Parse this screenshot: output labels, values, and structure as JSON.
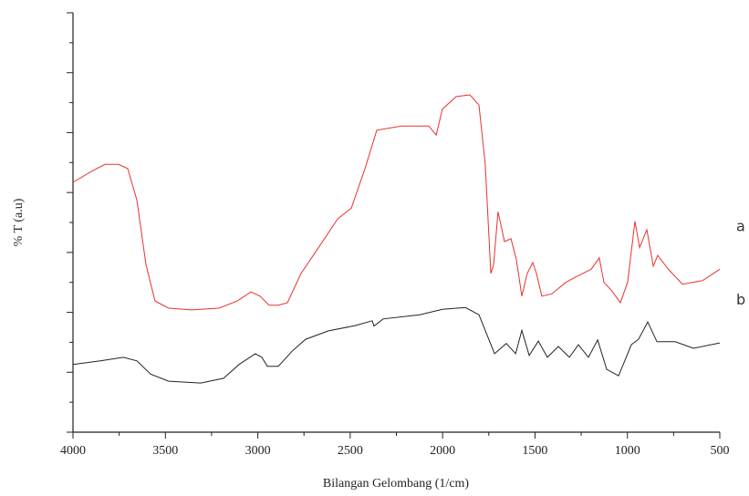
{
  "chart_data": {
    "type": "line",
    "xlabel": "Bilangan Gelombang (1/cm)",
    "ylabel": "% T (a.u)",
    "xlim": [
      4000,
      500
    ],
    "xticks": [
      4000,
      3500,
      3000,
      2500,
      2000,
      1500,
      1000,
      500
    ],
    "xminorticks": [
      3750,
      3250,
      2750,
      2250,
      1750,
      1250,
      750
    ],
    "ylim": [
      0,
      7
    ],
    "yticks": [
      0,
      1,
      2,
      3,
      4,
      5,
      6,
      7
    ],
    "yminorticks": [
      0.5,
      1.5,
      2.5,
      3.5,
      4.5,
      5.5,
      6.5
    ],
    "series": [
      {
        "name": "a",
        "color": "#e8322e",
        "x": [
          4000,
          3901,
          3827,
          3753,
          3704,
          3654,
          3605,
          3556,
          3482,
          3358,
          3210,
          3111,
          3037,
          2988,
          2939,
          2889,
          2840,
          2766,
          2667,
          2568,
          2494,
          2420,
          2356,
          2223,
          2075,
          2035,
          2001,
          1927,
          1852,
          1803,
          1769,
          1739,
          1724,
          1700,
          1665,
          1630,
          1601,
          1571,
          1542,
          1512,
          1492,
          1463,
          1408,
          1334,
          1260,
          1196,
          1152,
          1127,
          1087,
          1038,
          999,
          959,
          934,
          895,
          860,
          836,
          776,
          702,
          593,
          500
        ],
        "values": [
          4.17,
          4.35,
          4.47,
          4.47,
          4.4,
          3.87,
          2.8,
          2.19,
          2.07,
          2.04,
          2.07,
          2.19,
          2.34,
          2.27,
          2.12,
          2.12,
          2.16,
          2.65,
          3.1,
          3.56,
          3.74,
          4.4,
          5.04,
          5.11,
          5.11,
          4.96,
          5.39,
          5.6,
          5.63,
          5.46,
          4.47,
          2.65,
          2.8,
          3.68,
          3.18,
          3.23,
          2.88,
          2.27,
          2.65,
          2.83,
          2.65,
          2.27,
          2.31,
          2.5,
          2.62,
          2.72,
          2.91,
          2.5,
          2.37,
          2.16,
          2.5,
          3.52,
          3.08,
          3.38,
          2.77,
          2.95,
          2.71,
          2.47,
          2.53,
          2.72
        ]
      },
      {
        "name": "b",
        "color": "#222222",
        "x": [
          4000,
          3852,
          3728,
          3654,
          3580,
          3482,
          3309,
          3185,
          3101,
          3013,
          2978,
          2948,
          2889,
          2815,
          2741,
          2618,
          2470,
          2381,
          2371,
          2322,
          2124,
          2001,
          1877,
          1803,
          1754,
          1719,
          1655,
          1605,
          1571,
          1531,
          1482,
          1433,
          1374,
          1314,
          1265,
          1211,
          1161,
          1112,
          1048,
          1013,
          979,
          940,
          890,
          840,
          741,
          643,
          500
        ],
        "values": [
          1.13,
          1.19,
          1.25,
          1.19,
          0.97,
          0.85,
          0.82,
          0.9,
          1.13,
          1.31,
          1.25,
          1.1,
          1.1,
          1.35,
          1.55,
          1.69,
          1.78,
          1.86,
          1.77,
          1.89,
          1.96,
          2.05,
          2.08,
          1.96,
          1.58,
          1.31,
          1.48,
          1.31,
          1.7,
          1.28,
          1.52,
          1.25,
          1.43,
          1.25,
          1.46,
          1.25,
          1.54,
          1.05,
          0.94,
          1.2,
          1.46,
          1.55,
          1.84,
          1.51,
          1.51,
          1.4,
          1.49
        ]
      }
    ]
  }
}
